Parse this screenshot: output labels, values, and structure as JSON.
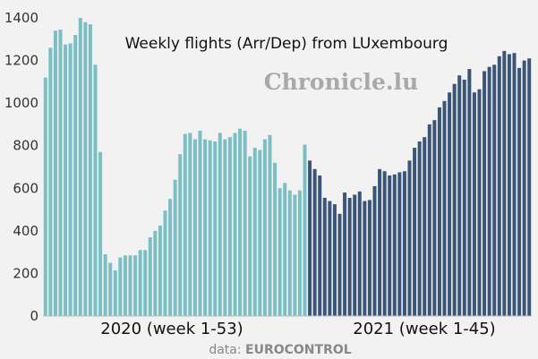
{
  "chart_data": {
    "type": "bar",
    "title": "Weekly flights (Arr/Dep) from LUxembourg",
    "xlabel": "",
    "ylabel": "",
    "ylim": [
      0,
      1400
    ],
    "yticks": [
      0,
      200,
      400,
      600,
      800,
      1000,
      1200,
      1400
    ],
    "grid": false,
    "series": [
      {
        "period_label": "2020 (week 1-53)",
        "color": "#7bbfc4",
        "values": [
          1120,
          1260,
          1340,
          1345,
          1275,
          1280,
          1320,
          1400,
          1380,
          1370,
          1180,
          770,
          290,
          250,
          215,
          275,
          285,
          285,
          285,
          310,
          310,
          370,
          400,
          425,
          495,
          550,
          640,
          760,
          855,
          860,
          830,
          870,
          830,
          825,
          820,
          860,
          830,
          840,
          860,
          880,
          870,
          750,
          790,
          780,
          830,
          850,
          720,
          600,
          625,
          590,
          570,
          590,
          805
        ]
      },
      {
        "period_label": "2021 (week 1-45)",
        "color": "#3b5578",
        "values": [
          730,
          690,
          660,
          555,
          540,
          525,
          480,
          580,
          555,
          570,
          585,
          540,
          545,
          610,
          690,
          680,
          660,
          665,
          675,
          680,
          730,
          790,
          820,
          840,
          900,
          920,
          980,
          1010,
          1050,
          1090,
          1130,
          1110,
          1160,
          1050,
          1065,
          1150,
          1170,
          1180,
          1220,
          1245,
          1230,
          1235,
          1165,
          1200,
          1210
        ]
      }
    ]
  },
  "watermark": "Chronicle.lu",
  "credit": {
    "prefix": "data: ",
    "source": "EUROCONTROL"
  }
}
